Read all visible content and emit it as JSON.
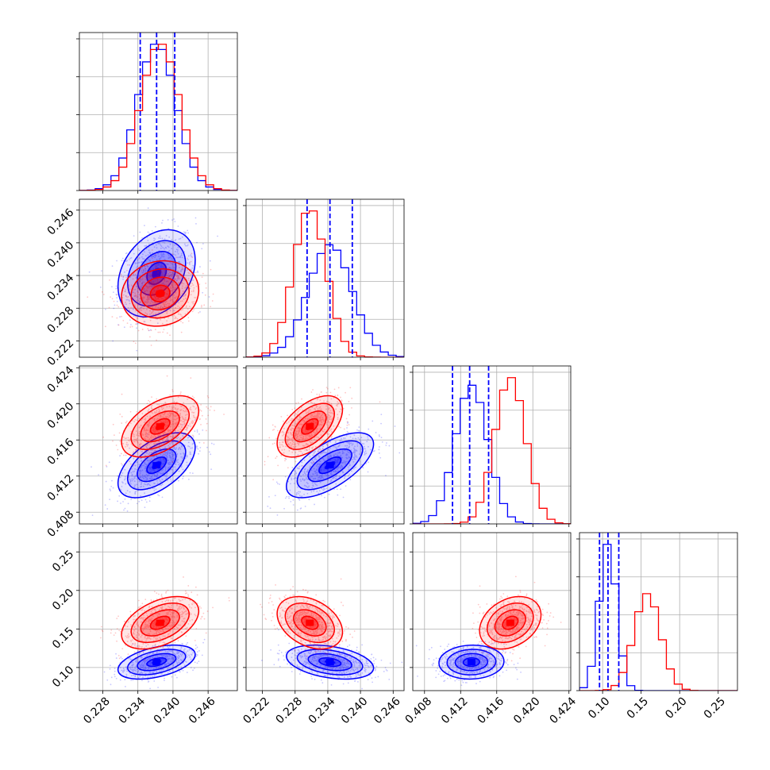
{
  "figure": {
    "type": "corner-plot",
    "grid": true,
    "colors": {
      "series_a": "#0000ff",
      "series_b": "#ff0000",
      "grid": "#b0b0b0"
    }
  },
  "chart_data": {
    "type": "corner",
    "parameters": [
      {
        "range": [
          0.224,
          0.251
        ],
        "ticks": [
          0.228,
          0.234,
          0.24,
          0.246
        ],
        "tick_labels": [
          "0.228",
          "0.234",
          "0.240",
          "0.246"
        ]
      },
      {
        "range": [
          0.219,
          0.248
        ],
        "ticks": [
          0.222,
          0.228,
          0.234,
          0.24,
          0.246
        ],
        "tick_labels": [
          "0.222",
          "0.228",
          "0.234",
          "0.240",
          "0.246"
        ]
      },
      {
        "range": [
          0.4067,
          0.4242
        ],
        "ticks": [
          0.408,
          0.412,
          0.416,
          0.42,
          0.424
        ],
        "tick_labels": [
          "0.408",
          "0.412",
          "0.416",
          "0.420",
          "0.424"
        ]
      },
      {
        "range": [
          0.07,
          0.275
        ],
        "ticks": [
          0.1,
          0.15,
          0.2,
          0.25
        ],
        "tick_labels": [
          "0.10",
          "0.15",
          "0.20",
          "0.25"
        ]
      }
    ],
    "quantile_lines": [
      [
        0.2344,
        0.2372,
        0.2403
      ],
      [
        0.2302,
        0.2344,
        0.2385
      ],
      [
        0.4111,
        0.413,
        0.4151
      ],
      [
        0.096,
        0.107,
        0.121
      ]
    ],
    "series": [
      {
        "color": "#0000ff",
        "mean": [
          0.2372,
          0.2344,
          0.4132,
          0.107
        ],
        "sd": [
          0.0033,
          0.004,
          0.0018,
          0.011
        ],
        "corr": [
          [
            1,
            0.3,
            0.55,
            0.45
          ],
          [
            0.3,
            1,
            0.65,
            -0.35
          ],
          [
            0.55,
            0.65,
            1,
            0.05
          ],
          [
            0.45,
            -0.35,
            0.05,
            1
          ]
        ]
      },
      {
        "color": "#ff0000",
        "mean": [
          0.2378,
          0.2307,
          0.4175,
          0.158
        ],
        "sd": [
          0.0033,
          0.003,
          0.0017,
          0.017
        ],
        "corr": [
          [
            1,
            0.1,
            0.5,
            0.45
          ],
          [
            0.1,
            1,
            0.55,
            -0.35
          ],
          [
            0.5,
            0.55,
            1,
            0.3
          ],
          [
            0.45,
            -0.35,
            0.3,
            1
          ]
        ]
      }
    ]
  }
}
